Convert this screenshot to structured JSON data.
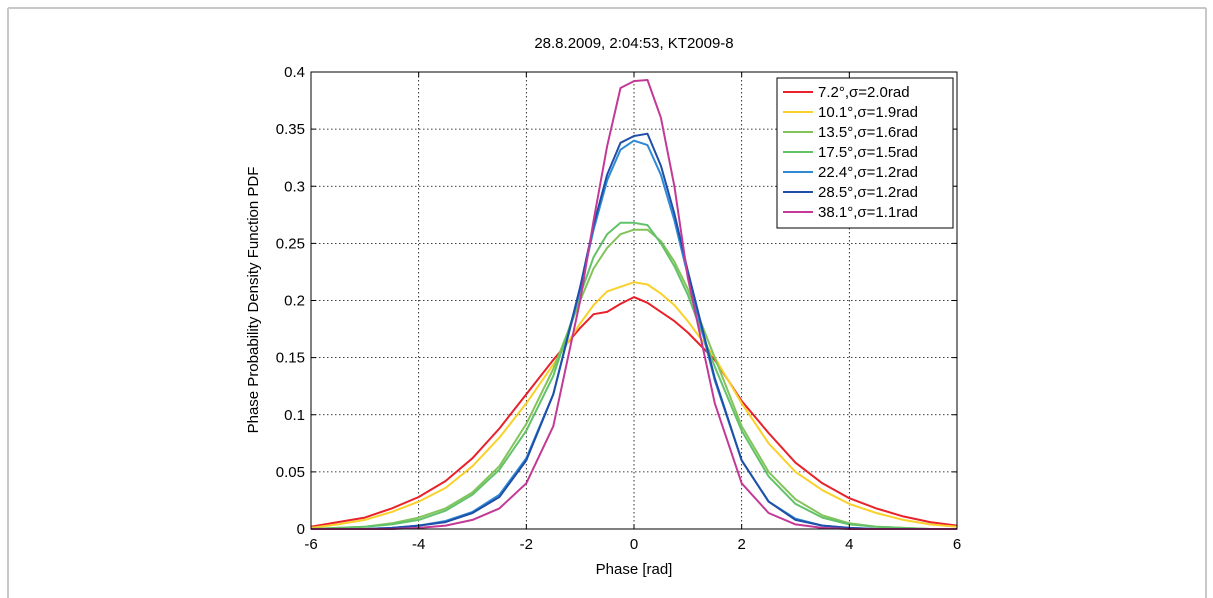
{
  "colors": {
    "frame_border": "#c8c8c8",
    "grid": "#000000",
    "background": "#ffffff"
  },
  "chart_data": {
    "type": "line",
    "title": "28.8.2009, 2:04:53, KT2009-8",
    "xlabel": "Phase [rad]",
    "ylabel": "Phase Probability Density Function PDF",
    "xlim": [
      -6,
      6
    ],
    "ylim": [
      0,
      0.4
    ],
    "x_ticks": [
      -6,
      -4,
      -2,
      0,
      2,
      4,
      6
    ],
    "y_ticks": [
      0,
      0.05,
      0.1,
      0.15,
      0.2,
      0.25,
      0.3,
      0.35,
      0.4
    ],
    "grid": true,
    "grid_style": "dotted",
    "legend_position": "top-right",
    "x": [
      -6,
      -5.5,
      -5,
      -4.5,
      -4,
      -3.5,
      -3,
      -2.5,
      -2,
      -1.5,
      -1,
      -0.75,
      -0.5,
      -0.25,
      0,
      0.25,
      0.5,
      0.75,
      1,
      1.5,
      2,
      2.5,
      3,
      3.5,
      4,
      4.5,
      5,
      5.5,
      6
    ],
    "series": [
      {
        "name": "7.2°,σ=2.0rad",
        "color": "#e8212a",
        "values": [
          0.002,
          0.006,
          0.01,
          0.018,
          0.028,
          0.042,
          0.062,
          0.088,
          0.118,
          0.148,
          0.176,
          0.188,
          0.19,
          0.197,
          0.203,
          0.198,
          0.19,
          0.182,
          0.172,
          0.148,
          0.112,
          0.084,
          0.058,
          0.04,
          0.027,
          0.018,
          0.011,
          0.006,
          0.003
        ]
      },
      {
        "name": "10.1°,σ=1.9rad",
        "color": "#f9d12a",
        "values": [
          0.001,
          0.004,
          0.008,
          0.015,
          0.024,
          0.036,
          0.055,
          0.08,
          0.11,
          0.144,
          0.18,
          0.196,
          0.208,
          0.212,
          0.216,
          0.214,
          0.206,
          0.196,
          0.182,
          0.15,
          0.11,
          0.075,
          0.05,
          0.034,
          0.022,
          0.014,
          0.008,
          0.004,
          0.002
        ]
      },
      {
        "name": "13.5°,σ=1.6rad",
        "color": "#82c45a",
        "values": [
          0.0,
          0.001,
          0.002,
          0.005,
          0.01,
          0.018,
          0.032,
          0.055,
          0.092,
          0.14,
          0.2,
          0.228,
          0.246,
          0.258,
          0.262,
          0.262,
          0.252,
          0.234,
          0.21,
          0.15,
          0.09,
          0.05,
          0.026,
          0.012,
          0.005,
          0.002,
          0.001,
          0.0,
          0.0
        ]
      },
      {
        "name": "17.5°,σ=1.5rad",
        "color": "#62c26a",
        "values": [
          0.0,
          0.001,
          0.002,
          0.004,
          0.008,
          0.016,
          0.03,
          0.052,
          0.086,
          0.134,
          0.205,
          0.238,
          0.258,
          0.268,
          0.268,
          0.266,
          0.25,
          0.23,
          0.205,
          0.142,
          0.086,
          0.046,
          0.022,
          0.01,
          0.004,
          0.002,
          0.001,
          0.0,
          0.0
        ]
      },
      {
        "name": "22.4°,σ=1.2rad",
        "color": "#2f8ad6",
        "values": [
          0.0,
          0.0,
          0.0,
          0.001,
          0.003,
          0.007,
          0.015,
          0.03,
          0.062,
          0.118,
          0.21,
          0.262,
          0.305,
          0.332,
          0.34,
          0.336,
          0.31,
          0.27,
          0.222,
          0.13,
          0.06,
          0.024,
          0.009,
          0.003,
          0.001,
          0.0,
          0.0,
          0.0,
          0.0
        ]
      },
      {
        "name": "28.5°,σ=1.2rad",
        "color": "#1f4fa8",
        "values": [
          0.0,
          0.0,
          0.0,
          0.001,
          0.003,
          0.006,
          0.014,
          0.028,
          0.06,
          0.118,
          0.212,
          0.266,
          0.31,
          0.338,
          0.344,
          0.346,
          0.318,
          0.276,
          0.226,
          0.132,
          0.06,
          0.024,
          0.008,
          0.003,
          0.001,
          0.0,
          0.0,
          0.0,
          0.0
        ]
      },
      {
        "name": "38.1°,σ=1.1rad",
        "color": "#c23a96",
        "values": [
          0.0,
          0.0,
          0.0,
          0.0,
          0.001,
          0.003,
          0.008,
          0.018,
          0.04,
          0.09,
          0.2,
          0.27,
          0.335,
          0.386,
          0.392,
          0.393,
          0.36,
          0.3,
          0.22,
          0.11,
          0.04,
          0.014,
          0.004,
          0.001,
          0.0,
          0.0,
          0.0,
          0.0,
          0.0
        ]
      }
    ]
  }
}
